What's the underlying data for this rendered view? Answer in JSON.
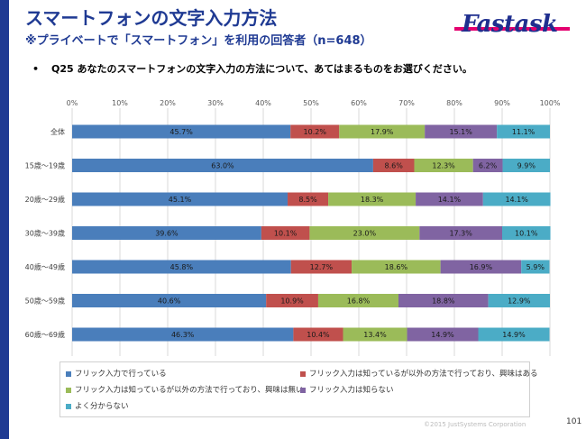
{
  "header": {
    "title": "スマートフォンの文字入力方法",
    "subtitle": "※プライベートで「スマートフォン」を利用の回答者（n=648）",
    "logo": "Fastask"
  },
  "question": {
    "bullet": "•",
    "text": "Q25 あなたのスマートフォンの文字入力の方法について、あてはまるものをお選びください。"
  },
  "footer": {
    "copyright": "©2015 JustSystems Corporation",
    "page_number": "101"
  },
  "chart_data": {
    "type": "bar",
    "orientation": "horizontal",
    "stacked": true,
    "percent_stacked": true,
    "xlim": [
      0,
      100
    ],
    "x_ticks": [
      "0%",
      "10%",
      "20%",
      "30%",
      "40%",
      "50%",
      "60%",
      "70%",
      "80%",
      "90%",
      "100%"
    ],
    "grid": true,
    "legend_position": "bottom",
    "categories": [
      "全体",
      "15歳～19歳",
      "20歳～29歳",
      "30歳～39歳",
      "40歳～49歳",
      "50歳～59歳",
      "60歳～69歳"
    ],
    "series": [
      {
        "name": "フリック入力で行っている",
        "color": "#4a7ebb",
        "values": [
          45.7,
          63.0,
          45.1,
          39.6,
          45.8,
          40.6,
          46.3
        ]
      },
      {
        "name": "フリック入力は知っているが以外の方法で行っており、興味はある",
        "color": "#c0504d",
        "values": [
          10.2,
          8.6,
          8.5,
          10.1,
          12.7,
          10.9,
          10.4
        ]
      },
      {
        "name": "フリック入力は知っているが以外の方法で行っており、興味は無い",
        "color": "#9bbb59",
        "values": [
          17.9,
          12.3,
          18.3,
          23.0,
          18.6,
          16.8,
          13.4
        ]
      },
      {
        "name": "フリック入力は知らない",
        "color": "#8064a2",
        "values": [
          15.1,
          6.2,
          14.1,
          17.3,
          16.9,
          18.8,
          14.9
        ]
      },
      {
        "name": "よく分からない",
        "color": "#4bacc6",
        "values": [
          11.1,
          9.9,
          14.1,
          10.1,
          5.9,
          12.9,
          14.9
        ]
      }
    ]
  }
}
